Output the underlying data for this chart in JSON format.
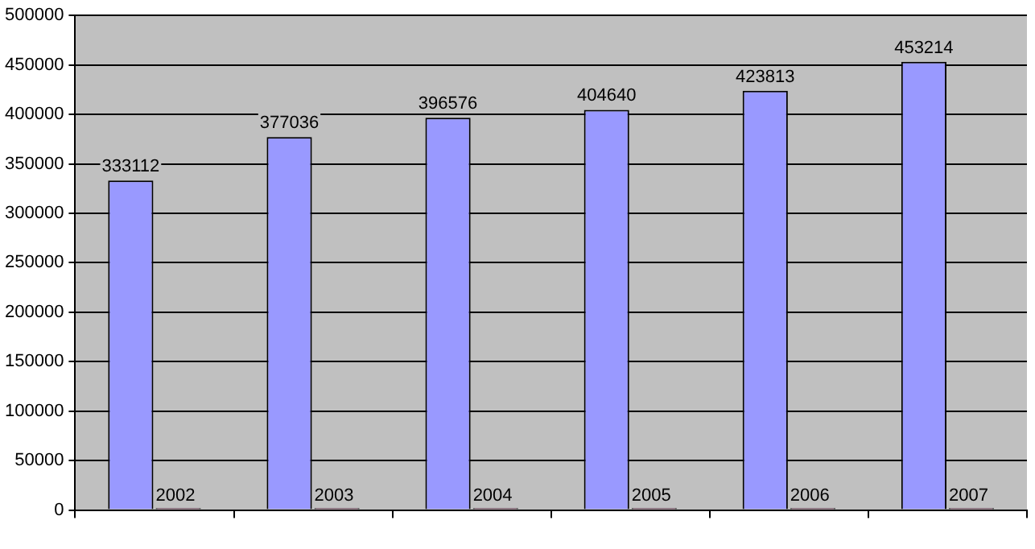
{
  "chart_data": {
    "type": "bar",
    "categories": [
      null,
      null,
      null,
      null,
      null,
      null
    ],
    "series": [
      {
        "color": "#9999ff",
        "values": [
          333112,
          377036,
          396576,
          404640,
          423813,
          453214
        ]
      },
      {
        "color": "#993366",
        "values": [
          2002,
          2003,
          2004,
          2005,
          2006,
          2007
        ]
      }
    ],
    "ylim": [
      0,
      500000
    ],
    "yticks": [
      0,
      50000,
      100000,
      150000,
      200000,
      250000,
      300000,
      350000,
      400000,
      450000,
      500000
    ],
    "grid": "y",
    "legend": false,
    "data_labels": true
  }
}
